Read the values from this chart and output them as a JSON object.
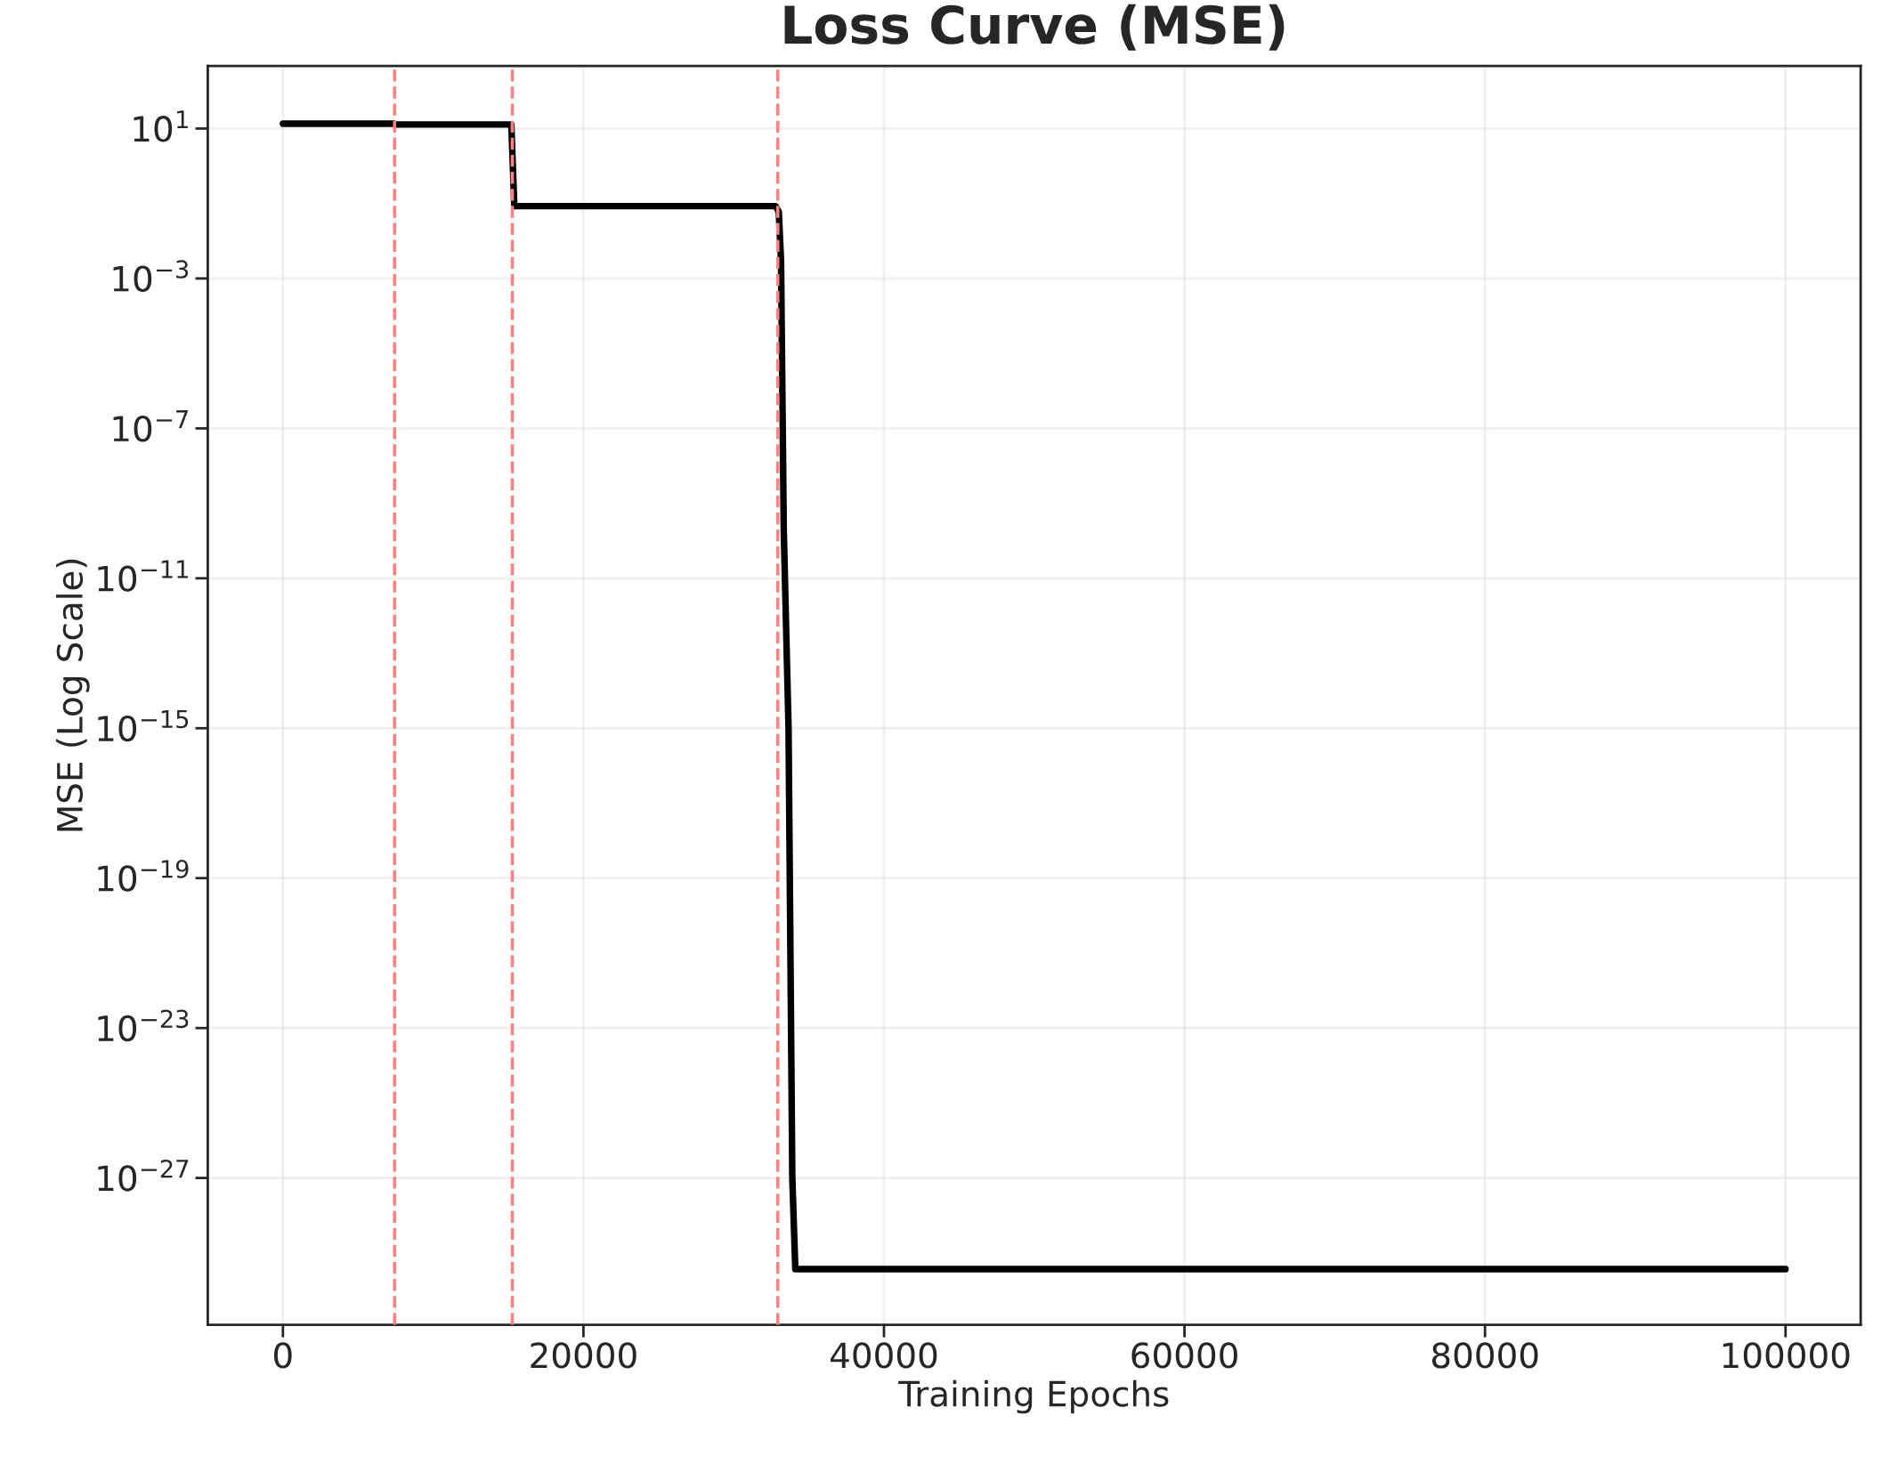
{
  "chart_data": {
    "type": "line",
    "title": "Loss Curve (MSE)",
    "xlabel": "Training Epochs",
    "ylabel": "MSE (Log Scale)",
    "log": "y",
    "grid": true,
    "series": [
      {
        "color": "#000000",
        "x": [
          0,
          7400,
          7500,
          15200,
          15400,
          32800,
          33000,
          33150,
          33330,
          33650,
          33900,
          34100,
          100000
        ],
        "values": [
          13.5,
          13.5,
          12.8,
          12.8,
          0.085,
          0.085,
          0.06,
          0.003,
          2e-10,
          1e-15,
          1e-27,
          3.7e-30,
          3.7e-30
        ]
      }
    ],
    "xlim": [
      -5000,
      105000
    ],
    "xticks": [
      0,
      20000,
      40000,
      60000,
      80000,
      100000
    ],
    "ylim": [
      1.2e-31,
      470
    ],
    "yticks": [
      {
        "value": 10,
        "label": "10$^{1}$"
      },
      {
        "value": 0.001,
        "label": "10$^{−3}$"
      },
      {
        "value": 1e-07,
        "label": "10$^{−7}$"
      },
      {
        "value": 1e-11,
        "label": "10$^{−11}$"
      },
      {
        "value": 1e-15,
        "label": "10$^{−15}$"
      },
      {
        "value": 1e-19,
        "label": "10$^{−19}$"
      },
      {
        "value": 1e-23,
        "label": "10$^{−23}$"
      },
      {
        "value": 1e-27,
        "label": "10$^{−27}$"
      }
    ],
    "ref_lines": [
      {
        "axis": "x",
        "value": 7434,
        "color": "#ff8080",
        "line_style": "dashed"
      },
      {
        "axis": "x",
        "value": 15267,
        "color": "#ff8080",
        "line_style": "dashed"
      },
      {
        "axis": "x",
        "value": 32934,
        "color": "#ff8080",
        "line_style": "dashed"
      }
    ]
  }
}
